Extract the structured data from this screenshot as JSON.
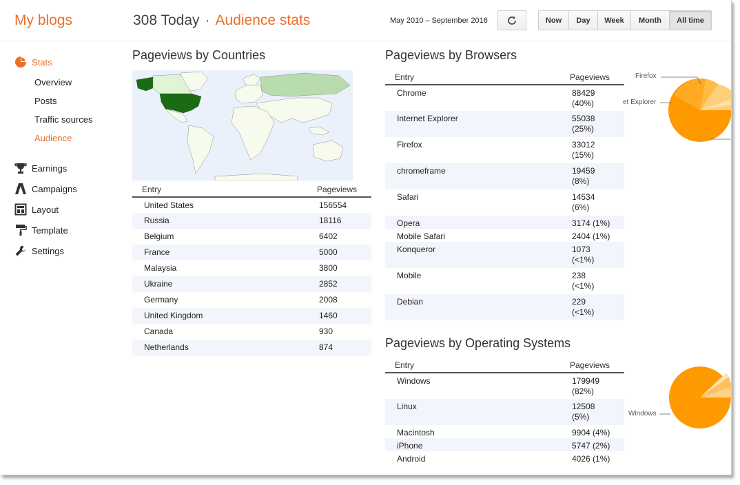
{
  "header": {
    "brand": "My blogs",
    "today_count": "308 Today",
    "separator": "·",
    "subtitle": "Audience stats",
    "date_range": "May 2010 – September 2016",
    "ranges": [
      "Now",
      "Day",
      "Week",
      "Month",
      "All time"
    ],
    "active_range": "All time"
  },
  "sidebar": {
    "stats_label": "Stats",
    "sub_items": [
      "Overview",
      "Posts",
      "Traffic sources",
      "Audience"
    ],
    "active_sub": "Audience",
    "items": [
      {
        "label": "Earnings",
        "icon": "trophy-icon"
      },
      {
        "label": "Campaigns",
        "icon": "campaigns-icon"
      },
      {
        "label": "Layout",
        "icon": "layout-icon"
      },
      {
        "label": "Template",
        "icon": "paint-roller-icon"
      },
      {
        "label": "Settings",
        "icon": "wrench-icon"
      }
    ]
  },
  "countries": {
    "title": "Pageviews by Countries",
    "columns": [
      "Entry",
      "Pageviews"
    ],
    "rows": [
      [
        "United States",
        "156554"
      ],
      [
        "Russia",
        "18116"
      ],
      [
        "Belgium",
        "6402"
      ],
      [
        "France",
        "5000"
      ],
      [
        "Malaysia",
        "3800"
      ],
      [
        "Ukraine",
        "2852"
      ],
      [
        "Germany",
        "2008"
      ],
      [
        "United Kingdom",
        "1460"
      ],
      [
        "Canada",
        "930"
      ],
      [
        "Netherlands",
        "874"
      ]
    ]
  },
  "browsers": {
    "title": "Pageviews by Browsers",
    "columns": [
      "Entry",
      "Pageviews"
    ],
    "rows": [
      [
        "Chrome",
        "88429",
        "(40%)"
      ],
      [
        "Internet Explorer",
        "55038",
        "(25%)"
      ],
      [
        "Firefox",
        "33012",
        "(15%)"
      ],
      [
        "chromeframe",
        "19459",
        "(8%)"
      ],
      [
        "Safari",
        "14534",
        "(6%)"
      ],
      [
        "Opera",
        "3174 (1%)",
        ""
      ],
      [
        "Mobile Safari",
        "2404 (1%)",
        ""
      ],
      [
        "Konqueror",
        "1073",
        "(<1%)"
      ],
      [
        "Mobile",
        "238",
        "(<1%)"
      ],
      [
        "Debian",
        "229",
        "(<1%)"
      ]
    ],
    "pie_labels": [
      "Firefox",
      "et Explorer"
    ]
  },
  "os": {
    "title": "Pageviews by Operating Systems",
    "columns": [
      "Entry",
      "Pageviews"
    ],
    "rows": [
      [
        "Windows",
        "179949",
        "(82%)"
      ],
      [
        "Linux",
        "12508",
        "(5%)"
      ],
      [
        "Macintosh",
        "9904 (4%)",
        ""
      ],
      [
        "iPhone",
        "5747 (2%)",
        ""
      ],
      [
        "Android",
        "4026 (1%)",
        ""
      ]
    ],
    "pie_labels": [
      "Windows"
    ]
  },
  "colors": {
    "accent": "#e8702a",
    "pie_main": "#ff9900",
    "map_us": "#1b6b14"
  }
}
